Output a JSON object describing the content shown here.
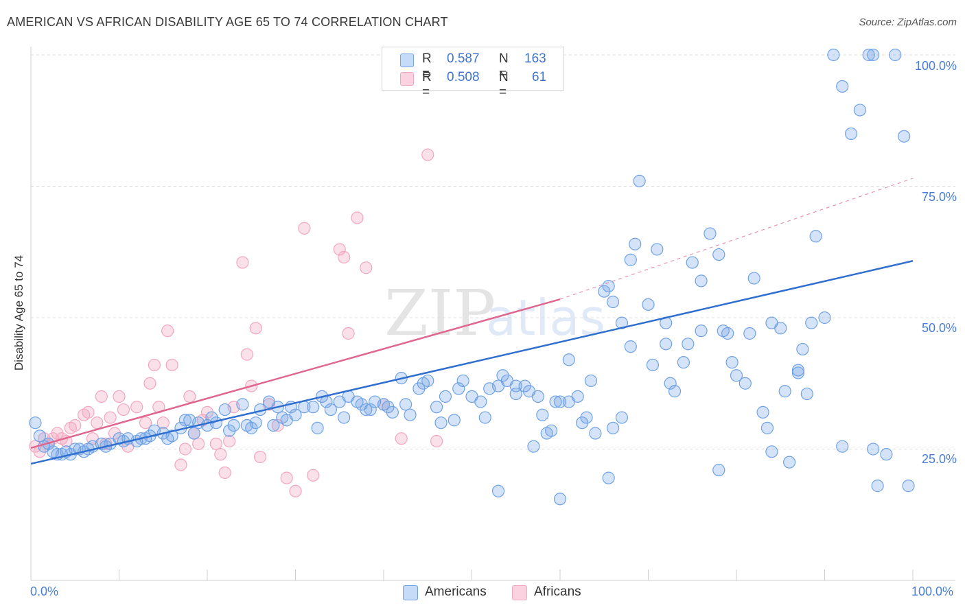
{
  "title": "AMERICAN VS AFRICAN DISABILITY AGE 65 TO 74 CORRELATION CHART",
  "source": "Source: ZipAtlas.com",
  "watermark": {
    "zip": "ZIP",
    "atlas": "atlas"
  },
  "legend": {
    "americans": {
      "r_label": "R =",
      "r_value": "0.587",
      "n_label": "N =",
      "n_value": "163"
    },
    "africans": {
      "r_label": "R =",
      "r_value": "0.508",
      "n_label": "N =",
      "n_value": "61"
    }
  },
  "bottom_legend": {
    "americans": "Americans",
    "africans": "Africans"
  },
  "colors": {
    "blue": "#6fa2e6",
    "pink": "#f2a6c0",
    "blue_line": "#2f6fd0",
    "pink_line": "#e0668f",
    "tick_text": "#4a7ed6"
  },
  "chart_data": {
    "type": "scatter",
    "title": "AMERICAN VS AFRICAN DISABILITY AGE 65 TO 74 CORRELATION CHART",
    "xlabel": "",
    "ylabel": "Disability Age 65 to 74",
    "xlim": [
      0,
      100
    ],
    "ylim": [
      0,
      100
    ],
    "x_tick_labels": [
      "0.0%",
      "100.0%"
    ],
    "y_tick_labels": [
      "25.0%",
      "50.0%",
      "75.0%",
      "100.0%"
    ],
    "y_ticks": [
      25,
      50,
      75,
      100
    ],
    "grid": true,
    "legend_position": "top-center",
    "series": [
      {
        "name": "Americans",
        "r": 0.587,
        "n": 163,
        "trend": {
          "x": [
            0,
            100
          ],
          "y": [
            22.2,
            60.8
          ]
        },
        "points": [
          [
            0.5,
            30
          ],
          [
            1,
            27.5
          ],
          [
            1.5,
            25.5
          ],
          [
            2,
            26
          ],
          [
            2.5,
            24.5
          ],
          [
            3,
            24
          ],
          [
            3.5,
            24
          ],
          [
            4,
            24.5
          ],
          [
            4.5,
            24
          ],
          [
            5,
            25
          ],
          [
            5.5,
            25
          ],
          [
            6,
            24.5
          ],
          [
            6.5,
            25
          ],
          [
            7,
            25.5
          ],
          [
            8,
            26
          ],
          [
            8.5,
            25.5
          ],
          [
            9,
            26
          ],
          [
            10,
            27
          ],
          [
            10.5,
            26.5
          ],
          [
            11,
            27
          ],
          [
            12,
            26.5
          ],
          [
            12.5,
            27
          ],
          [
            13,
            27
          ],
          [
            13.5,
            27.5
          ],
          [
            14,
            28.5
          ],
          [
            15,
            28
          ],
          [
            15.5,
            27
          ],
          [
            16,
            27.5
          ],
          [
            17,
            29
          ],
          [
            17.5,
            30.5
          ],
          [
            18,
            30.5
          ],
          [
            18.5,
            28
          ],
          [
            19,
            30
          ],
          [
            20,
            29.5
          ],
          [
            20.5,
            31
          ],
          [
            21,
            30
          ],
          [
            22,
            32.5
          ],
          [
            22.5,
            28.5
          ],
          [
            23,
            29.5
          ],
          [
            24,
            33.5
          ],
          [
            24.5,
            29.5
          ],
          [
            25,
            29
          ],
          [
            25.5,
            30
          ],
          [
            26,
            32.5
          ],
          [
            27,
            34
          ],
          [
            27.5,
            29.5
          ],
          [
            28,
            33
          ],
          [
            28.5,
            31
          ],
          [
            29,
            30.5
          ],
          [
            29.5,
            33
          ],
          [
            30,
            31.5
          ],
          [
            31,
            33
          ],
          [
            32,
            33
          ],
          [
            32.5,
            29
          ],
          [
            33,
            35
          ],
          [
            33.5,
            34
          ],
          [
            34,
            32.5
          ],
          [
            35,
            34
          ],
          [
            35.5,
            31
          ],
          [
            36,
            35
          ],
          [
            37,
            34
          ],
          [
            37.5,
            33.5
          ],
          [
            38,
            32.5
          ],
          [
            38.5,
            32.5
          ],
          [
            39,
            34
          ],
          [
            40,
            33.5
          ],
          [
            40.5,
            33
          ],
          [
            41,
            32
          ],
          [
            42,
            38.5
          ],
          [
            42.5,
            33.5
          ],
          [
            43,
            31.5
          ],
          [
            44,
            36.5
          ],
          [
            44.5,
            37.5
          ],
          [
            45,
            38
          ],
          [
            46,
            33
          ],
          [
            46.5,
            30
          ],
          [
            47,
            35
          ],
          [
            48,
            30.5
          ],
          [
            48.5,
            36.5
          ],
          [
            49,
            38
          ],
          [
            50,
            35
          ],
          [
            51,
            34
          ],
          [
            51.5,
            31
          ],
          [
            52,
            36.5
          ],
          [
            53,
            37
          ],
          [
            53.5,
            39
          ],
          [
            54,
            38
          ],
          [
            55,
            35.5
          ],
          [
            56,
            37
          ],
          [
            57,
            25.5
          ],
          [
            57.5,
            35
          ],
          [
            58,
            31.5
          ],
          [
            59,
            28.5
          ],
          [
            59.5,
            34
          ],
          [
            60,
            34
          ],
          [
            61,
            34
          ],
          [
            62,
            35
          ],
          [
            62.5,
            30
          ],
          [
            63,
            31
          ],
          [
            64,
            28
          ],
          [
            65,
            55
          ],
          [
            65.5,
            56
          ],
          [
            66,
            53
          ],
          [
            67,
            49
          ],
          [
            68,
            61
          ],
          [
            68.5,
            64
          ],
          [
            69,
            76
          ],
          [
            70,
            52.5
          ],
          [
            71,
            63
          ],
          [
            72,
            45
          ],
          [
            72.5,
            37.5
          ],
          [
            73,
            36
          ],
          [
            74,
            41.5
          ],
          [
            75,
            60.5
          ],
          [
            76,
            57
          ],
          [
            77,
            66
          ],
          [
            78,
            62
          ],
          [
            78.5,
            47.5
          ],
          [
            79,
            47
          ],
          [
            80,
            39
          ],
          [
            81,
            37.5
          ],
          [
            82,
            57.5
          ],
          [
            83,
            32
          ],
          [
            83.5,
            29
          ],
          [
            84,
            24.5
          ],
          [
            85,
            48
          ],
          [
            85.5,
            36
          ],
          [
            86,
            22.5
          ],
          [
            87,
            40
          ],
          [
            87.5,
            44
          ],
          [
            88,
            35.5
          ],
          [
            89,
            65.5
          ],
          [
            90,
            50
          ],
          [
            91,
            100
          ],
          [
            92,
            94
          ],
          [
            93,
            85
          ],
          [
            94,
            89.5
          ],
          [
            95,
            100
          ],
          [
            95.5,
            100
          ],
          [
            96,
            18
          ],
          [
            97,
            24
          ],
          [
            98,
            100
          ],
          [
            99,
            84.5
          ],
          [
            99.5,
            18
          ],
          [
            53,
            17
          ],
          [
            60,
            15.5
          ],
          [
            65.5,
            19.5
          ],
          [
            78,
            21
          ],
          [
            66,
            29
          ],
          [
            70.5,
            41
          ],
          [
            55,
            37
          ],
          [
            56.5,
            36
          ],
          [
            58.5,
            28
          ],
          [
            61,
            42
          ],
          [
            63.5,
            38
          ],
          [
            67,
            31
          ],
          [
            68,
            44.5
          ],
          [
            72,
            49
          ],
          [
            74.5,
            45
          ],
          [
            76,
            47.5
          ],
          [
            79.5,
            41.5
          ],
          [
            81.5,
            47
          ],
          [
            84,
            49
          ],
          [
            87,
            39.5
          ],
          [
            92,
            25.5
          ],
          [
            88.5,
            49
          ],
          [
            95.5,
            25
          ]
        ]
      },
      {
        "name": "Africans",
        "r": 0.508,
        "n": 61,
        "trend": {
          "x": [
            0,
            60
          ],
          "y": [
            25.2,
            53.5
          ],
          "dashed_to": [
            100,
            76.5
          ]
        },
        "points": [
          [
            0.5,
            25.5
          ],
          [
            1,
            24.5
          ],
          [
            1.5,
            27
          ],
          [
            2,
            26
          ],
          [
            2.5,
            27
          ],
          [
            3,
            28
          ],
          [
            3.5,
            27
          ],
          [
            4,
            26.5
          ],
          [
            4.5,
            29
          ],
          [
            5,
            29.5
          ],
          [
            6,
            31.5
          ],
          [
            6.5,
            32
          ],
          [
            7,
            27
          ],
          [
            7.5,
            30
          ],
          [
            8,
            35
          ],
          [
            8.5,
            26
          ],
          [
            9,
            31
          ],
          [
            9.5,
            28
          ],
          [
            10,
            35
          ],
          [
            10.5,
            32.5
          ],
          [
            11,
            25.5
          ],
          [
            12,
            33
          ],
          [
            13,
            30
          ],
          [
            13.5,
            37.5
          ],
          [
            14,
            41
          ],
          [
            14.5,
            33
          ],
          [
            15,
            30
          ],
          [
            15.5,
            47.5
          ],
          [
            16,
            41
          ],
          [
            17,
            22
          ],
          [
            17.5,
            25
          ],
          [
            18,
            35
          ],
          [
            18.5,
            28
          ],
          [
            19,
            26
          ],
          [
            19.5,
            30.5
          ],
          [
            20,
            32
          ],
          [
            21,
            26
          ],
          [
            21.5,
            24
          ],
          [
            22,
            20.5
          ],
          [
            22.5,
            26.5
          ],
          [
            23,
            33
          ],
          [
            24,
            60.5
          ],
          [
            24.5,
            43
          ],
          [
            25,
            37
          ],
          [
            25.5,
            48
          ],
          [
            26,
            23.5
          ],
          [
            27,
            33.5
          ],
          [
            28,
            29.5
          ],
          [
            29,
            19.5
          ],
          [
            30,
            17
          ],
          [
            31,
            67
          ],
          [
            32,
            20
          ],
          [
            35,
            63
          ],
          [
            35.5,
            61.5
          ],
          [
            36,
            47
          ],
          [
            37,
            69
          ],
          [
            38,
            59.5
          ],
          [
            40,
            33.5
          ],
          [
            42,
            27
          ],
          [
            45,
            81
          ],
          [
            46,
            26.5
          ]
        ]
      }
    ]
  }
}
